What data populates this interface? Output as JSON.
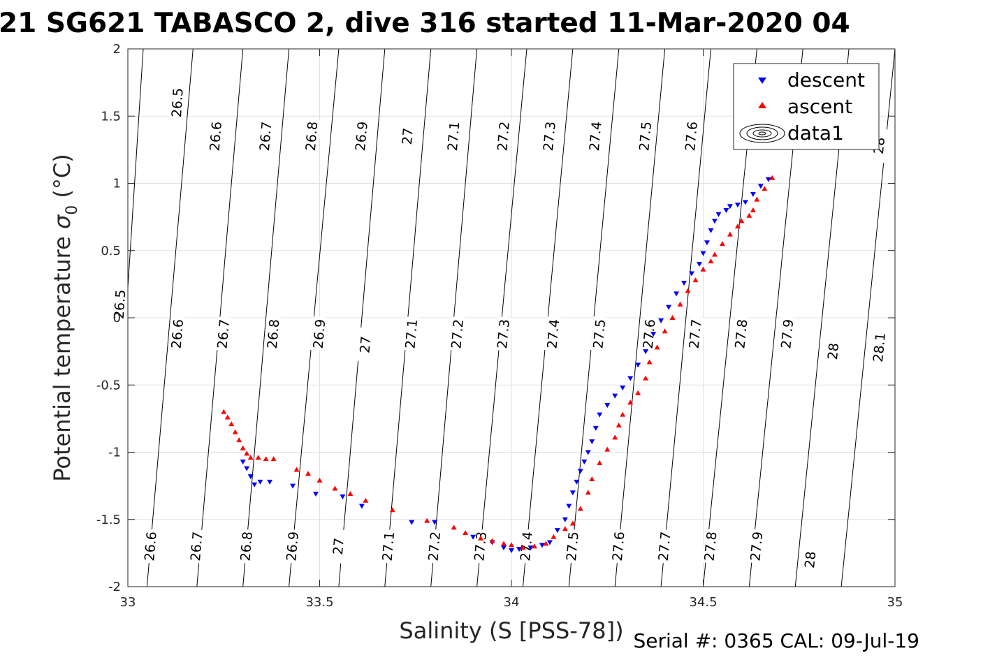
{
  "figure": {
    "title": "21 SG621 TABASCO 2, dive 316 started 11-Mar-2020 04",
    "footer": "Serial #: 0365  CAL: 09-Jul-19"
  },
  "chart_data": {
    "type": "scatter",
    "title": "21 SG621 TABASCO 2, dive 316 started 11-Mar-2020 04",
    "xlabel": "Salinity (S [PSS-78])",
    "ylabel_main": "Potential temperature ",
    "ylabel_sigma": "σ",
    "ylabel_sub": "0",
    "ylabel_unit": " (°C)",
    "xlim": [
      33,
      35
    ],
    "ylim": [
      -2,
      2
    ],
    "xticks": [
      33,
      33.5,
      34,
      34.5,
      35
    ],
    "xtick_labels": [
      "33",
      "33.5",
      "34",
      "34.5",
      "35"
    ],
    "yticks": [
      2,
      1.5,
      1,
      0.5,
      0,
      -0.5,
      -1,
      -1.5,
      -2
    ],
    "ytick_labels": [
      "2",
      "1.5",
      "1",
      "0.5",
      "0",
      "-0.5",
      "-1",
      "-1.5",
      "-2"
    ],
    "grid": true,
    "legend": {
      "placement": "top-right",
      "entries": [
        "descent",
        "ascent",
        "data1"
      ]
    },
    "colors": {
      "descent": "#0000ff",
      "ascent": "#ff0000",
      "contours": "#000000",
      "grid": "#e0e0e0"
    },
    "series": [
      {
        "name": "descent",
        "marker": "triangle-down",
        "points": [
          [
            33.3,
            -1.07
          ],
          [
            33.31,
            -1.12
          ],
          [
            33.32,
            -1.18
          ],
          [
            33.33,
            -1.24
          ],
          [
            33.345,
            -1.22
          ],
          [
            33.37,
            -1.22
          ],
          [
            33.43,
            -1.25
          ],
          [
            33.49,
            -1.31
          ],
          [
            33.56,
            -1.33
          ],
          [
            33.61,
            -1.4
          ],
          [
            33.74,
            -1.52
          ],
          [
            33.8,
            -1.52
          ],
          [
            33.9,
            -1.63
          ],
          [
            33.95,
            -1.67
          ],
          [
            33.98,
            -1.71
          ],
          [
            34.0,
            -1.73
          ],
          [
            34.02,
            -1.72
          ],
          [
            34.05,
            -1.71
          ],
          [
            34.08,
            -1.69
          ],
          [
            34.1,
            -1.67
          ],
          [
            34.12,
            -1.58
          ],
          [
            34.14,
            -1.5
          ],
          [
            34.15,
            -1.4
          ],
          [
            34.16,
            -1.3
          ],
          [
            34.17,
            -1.22
          ],
          [
            34.18,
            -1.14
          ],
          [
            34.19,
            -1.07
          ],
          [
            34.2,
            -1.0
          ],
          [
            34.21,
            -0.92
          ],
          [
            34.22,
            -0.82
          ],
          [
            34.23,
            -0.72
          ],
          [
            34.25,
            -0.65
          ],
          [
            34.27,
            -0.58
          ],
          [
            34.29,
            -0.52
          ],
          [
            34.31,
            -0.45
          ],
          [
            34.33,
            -0.35
          ],
          [
            34.35,
            -0.25
          ],
          [
            34.37,
            -0.12
          ],
          [
            34.39,
            -0.02
          ],
          [
            34.41,
            0.08
          ],
          [
            34.43,
            0.18
          ],
          [
            34.45,
            0.26
          ],
          [
            34.47,
            0.33
          ],
          [
            34.49,
            0.4
          ],
          [
            34.5,
            0.48
          ],
          [
            34.51,
            0.56
          ],
          [
            34.52,
            0.65
          ],
          [
            34.53,
            0.72
          ],
          [
            34.54,
            0.77
          ],
          [
            34.56,
            0.8
          ],
          [
            34.57,
            0.83
          ],
          [
            34.59,
            0.84
          ],
          [
            34.61,
            0.86
          ],
          [
            34.63,
            0.92
          ],
          [
            34.65,
            0.98
          ],
          [
            34.67,
            1.03
          ]
        ]
      },
      {
        "name": "ascent",
        "marker": "triangle-up",
        "points": [
          [
            33.25,
            -0.7
          ],
          [
            33.26,
            -0.74
          ],
          [
            33.27,
            -0.79
          ],
          [
            33.28,
            -0.85
          ],
          [
            33.29,
            -0.91
          ],
          [
            33.3,
            -0.97
          ],
          [
            33.31,
            -1.01
          ],
          [
            33.32,
            -1.04
          ],
          [
            33.34,
            -1.04
          ],
          [
            33.36,
            -1.05
          ],
          [
            33.38,
            -1.05
          ],
          [
            33.44,
            -1.13
          ],
          [
            33.47,
            -1.16
          ],
          [
            33.5,
            -1.21
          ],
          [
            33.54,
            -1.27
          ],
          [
            33.58,
            -1.31
          ],
          [
            33.62,
            -1.36
          ],
          [
            33.69,
            -1.43
          ],
          [
            33.78,
            -1.51
          ],
          [
            33.85,
            -1.56
          ],
          [
            33.88,
            -1.6
          ],
          [
            33.92,
            -1.64
          ],
          [
            33.95,
            -1.66
          ],
          [
            33.98,
            -1.68
          ],
          [
            34.0,
            -1.69
          ],
          [
            34.03,
            -1.71
          ],
          [
            34.06,
            -1.7
          ],
          [
            34.09,
            -1.68
          ],
          [
            34.11,
            -1.63
          ],
          [
            34.14,
            -1.57
          ],
          [
            34.16,
            -1.53
          ],
          [
            34.18,
            -1.42
          ],
          [
            34.2,
            -1.3
          ],
          [
            34.21,
            -1.2
          ],
          [
            34.23,
            -1.08
          ],
          [
            34.25,
            -0.98
          ],
          [
            34.27,
            -0.89
          ],
          [
            34.28,
            -0.8
          ],
          [
            34.29,
            -0.72
          ],
          [
            34.31,
            -0.63
          ],
          [
            34.33,
            -0.56
          ],
          [
            34.35,
            -0.45
          ],
          [
            34.36,
            -0.33
          ],
          [
            34.38,
            -0.22
          ],
          [
            34.4,
            -0.1
          ],
          [
            34.42,
            0.0
          ],
          [
            34.44,
            0.1
          ],
          [
            34.46,
            0.2
          ],
          [
            34.48,
            0.28
          ],
          [
            34.5,
            0.36
          ],
          [
            34.52,
            0.42
          ],
          [
            34.53,
            0.47
          ],
          [
            34.55,
            0.55
          ],
          [
            34.57,
            0.62
          ],
          [
            34.59,
            0.68
          ],
          [
            34.6,
            0.72
          ],
          [
            34.62,
            0.76
          ],
          [
            34.63,
            0.8
          ],
          [
            34.64,
            0.88
          ],
          [
            34.66,
            0.96
          ],
          [
            34.68,
            1.04
          ]
        ]
      }
    ],
    "sigma0_contours": [
      {
        "level": 26.5,
        "x_bottom": 32.95,
        "x_top": 33.04,
        "labels": [
          {
            "text": "26.5",
            "x": 32.98,
            "y": 0.1
          },
          {
            "text": "26.5",
            "x": 33.13,
            "y": 1.6
          }
        ]
      },
      {
        "level": 26.6,
        "x_bottom": 33.05,
        "x_top": 33.17,
        "labels": [
          {
            "text": "26.6",
            "x": 33.06,
            "y": -1.7
          },
          {
            "text": "26.6",
            "x": 33.13,
            "y": -0.12
          },
          {
            "text": "26.6",
            "x": 33.23,
            "y": 1.35
          }
        ]
      },
      {
        "level": 26.7,
        "x_bottom": 33.18,
        "x_top": 33.3,
        "labels": [
          {
            "text": "26.7",
            "x": 33.18,
            "y": -1.7
          },
          {
            "text": "26.7",
            "x": 33.25,
            "y": -0.12
          },
          {
            "text": "26.7",
            "x": 33.36,
            "y": 1.35
          }
        ]
      },
      {
        "level": 26.8,
        "x_bottom": 33.3,
        "x_top": 33.42,
        "labels": [
          {
            "text": "26.8",
            "x": 33.31,
            "y": -1.7
          },
          {
            "text": "26.8",
            "x": 33.38,
            "y": -0.12
          },
          {
            "text": "26.8",
            "x": 33.48,
            "y": 1.35
          }
        ]
      },
      {
        "level": 26.9,
        "x_bottom": 33.42,
        "x_top": 33.55,
        "labels": [
          {
            "text": "26.9",
            "x": 33.43,
            "y": -1.7
          },
          {
            "text": "26.9",
            "x": 33.5,
            "y": -0.12
          },
          {
            "text": "26.9",
            "x": 33.61,
            "y": 1.35
          }
        ]
      },
      {
        "level": 27,
        "x_bottom": 33.55,
        "x_top": 33.67,
        "labels": [
          {
            "text": "27",
            "x": 33.55,
            "y": -1.7
          },
          {
            "text": "27",
            "x": 33.62,
            "y": -0.2
          },
          {
            "text": "27",
            "x": 33.73,
            "y": 1.35
          }
        ]
      },
      {
        "level": 27.1,
        "x_bottom": 33.67,
        "x_top": 33.79,
        "labels": [
          {
            "text": "27.1",
            "x": 33.68,
            "y": -1.7
          },
          {
            "text": "27.1",
            "x": 33.74,
            "y": -0.12
          },
          {
            "text": "27.1",
            "x": 33.85,
            "y": 1.35
          }
        ]
      },
      {
        "level": 27.2,
        "x_bottom": 33.79,
        "x_top": 33.91,
        "labels": [
          {
            "text": "27.2",
            "x": 33.8,
            "y": -1.7
          },
          {
            "text": "27.2",
            "x": 33.86,
            "y": -0.12
          },
          {
            "text": "27.2",
            "x": 33.98,
            "y": 1.35
          }
        ]
      },
      {
        "level": 27.3,
        "x_bottom": 33.91,
        "x_top": 34.04,
        "labels": [
          {
            "text": "27.3",
            "x": 33.92,
            "y": -1.7
          },
          {
            "text": "27.3",
            "x": 33.98,
            "y": -0.12
          },
          {
            "text": "27.3",
            "x": 34.1,
            "y": 1.35
          }
        ]
      },
      {
        "level": 27.4,
        "x_bottom": 34.03,
        "x_top": 34.16,
        "labels": [
          {
            "text": "27.4",
            "x": 34.04,
            "y": -1.7
          },
          {
            "text": "27.4",
            "x": 34.11,
            "y": -0.12
          },
          {
            "text": "27.4",
            "x": 34.22,
            "y": 1.35
          }
        ]
      },
      {
        "level": 27.5,
        "x_bottom": 34.15,
        "x_top": 34.28,
        "labels": [
          {
            "text": "27.5",
            "x": 34.16,
            "y": -1.7
          },
          {
            "text": "27.5",
            "x": 34.23,
            "y": -0.12
          },
          {
            "text": "27.5",
            "x": 34.35,
            "y": 1.35
          }
        ]
      },
      {
        "level": 27.6,
        "x_bottom": 34.27,
        "x_top": 34.4,
        "labels": [
          {
            "text": "27.6",
            "x": 34.28,
            "y": -1.7
          },
          {
            "text": "27.6",
            "x": 34.36,
            "y": -0.12
          },
          {
            "text": "27.6",
            "x": 34.47,
            "y": 1.35
          }
        ]
      },
      {
        "level": 27.7,
        "x_bottom": 34.39,
        "x_top": 34.52,
        "labels": [
          {
            "text": "27.7",
            "x": 34.4,
            "y": -1.7
          },
          {
            "text": "27.7",
            "x": 34.48,
            "y": -0.12
          }
        ]
      },
      {
        "level": 27.8,
        "x_bottom": 34.5,
        "x_top": 34.64,
        "labels": [
          {
            "text": "27.8",
            "x": 34.52,
            "y": -1.7
          },
          {
            "text": "27.8",
            "x": 34.6,
            "y": -0.12
          }
        ]
      },
      {
        "level": 27.9,
        "x_bottom": 34.62,
        "x_top": 34.76,
        "labels": [
          {
            "text": "27.9",
            "x": 34.64,
            "y": -1.7
          },
          {
            "text": "27.9",
            "x": 34.72,
            "y": -0.12
          }
        ]
      },
      {
        "level": 28,
        "x_bottom": 34.74,
        "x_top": 34.88,
        "labels": [
          {
            "text": "28",
            "x": 34.78,
            "y": -1.8
          },
          {
            "text": "28",
            "x": 34.84,
            "y": -0.25
          },
          {
            "text": "28",
            "x": 34.96,
            "y": 1.28
          }
        ]
      },
      {
        "level": 28.1,
        "x_bottom": 34.86,
        "x_top": 35.0,
        "labels": [
          {
            "text": "28.1",
            "x": 34.96,
            "y": -0.22
          }
        ]
      }
    ]
  }
}
